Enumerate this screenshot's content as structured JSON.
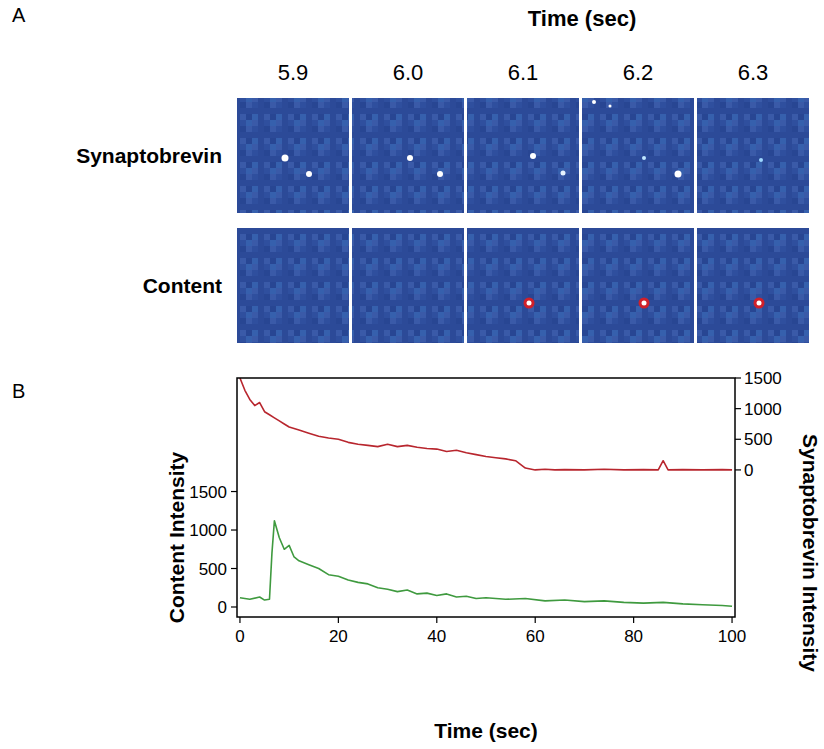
{
  "image_panel": {
    "panel": "A",
    "title": "Time (sec)",
    "times": [
      "5.9",
      "6.0",
      "6.1",
      "6.2",
      "6.3"
    ],
    "rows": [
      "Synaptobrevin",
      "Content"
    ]
  },
  "chart_data": {
    "type": "line",
    "panel": "B",
    "x_label": "Time (sec)",
    "y_label": "Content Intensity",
    "y2_label": "Synaptobrevin Intensity",
    "xlim": [
      -0.6,
      100.6
    ],
    "xticks": [
      0,
      20,
      40,
      60,
      80,
      100
    ],
    "ylim": [
      -130,
      2975
    ],
    "yticks": [
      0,
      500,
      1000,
      1500
    ],
    "y2lim": [
      -2400,
      1500
    ],
    "y2ticks": [
      0,
      500,
      1000,
      1500
    ],
    "grid": false,
    "series": [
      {
        "color": "#3f9a3f",
        "x": [
          0,
          2,
          4,
          5,
          6,
          6.5,
          7,
          8,
          9,
          10,
          11,
          12,
          14,
          16,
          18,
          20,
          22,
          24,
          26,
          28,
          30,
          32,
          34,
          36,
          38,
          40,
          42,
          44,
          46,
          48,
          50,
          54,
          58,
          62,
          66,
          70,
          74,
          78,
          82,
          86,
          90,
          94,
          98,
          100
        ],
        "values": [
          120,
          100,
          130,
          90,
          100,
          700,
          1120,
          900,
          750,
          800,
          650,
          600,
          550,
          500,
          420,
          400,
          350,
          320,
          300,
          250,
          230,
          200,
          220,
          170,
          180,
          150,
          170,
          130,
          140,
          110,
          120,
          100,
          110,
          80,
          90,
          70,
          80,
          60,
          50,
          60,
          40,
          30,
          20,
          10
        ]
      },
      {
        "color": "#b8262e",
        "axis": "y2",
        "x": [
          0,
          1,
          2,
          3,
          4,
          5,
          6,
          7,
          8,
          9,
          10,
          12,
          14,
          16,
          18,
          20,
          22,
          24,
          26,
          28,
          30,
          32,
          34,
          36,
          38,
          40,
          42,
          44,
          46,
          48,
          50,
          52,
          54,
          56,
          58,
          60,
          62,
          64,
          66,
          70,
          74,
          78,
          82,
          85,
          86,
          87,
          90,
          94,
          98,
          100
        ],
        "values": [
          1500,
          1300,
          1150,
          1050,
          1100,
          950,
          900,
          850,
          800,
          750,
          700,
          650,
          600,
          550,
          520,
          500,
          450,
          420,
          400,
          380,
          420,
          380,
          400,
          370,
          350,
          340,
          300,
          320,
          280,
          250,
          220,
          200,
          180,
          150,
          30,
          0,
          10,
          0,
          5,
          0,
          10,
          0,
          5,
          0,
          150,
          0,
          5,
          0,
          5,
          0
        ]
      }
    ]
  }
}
